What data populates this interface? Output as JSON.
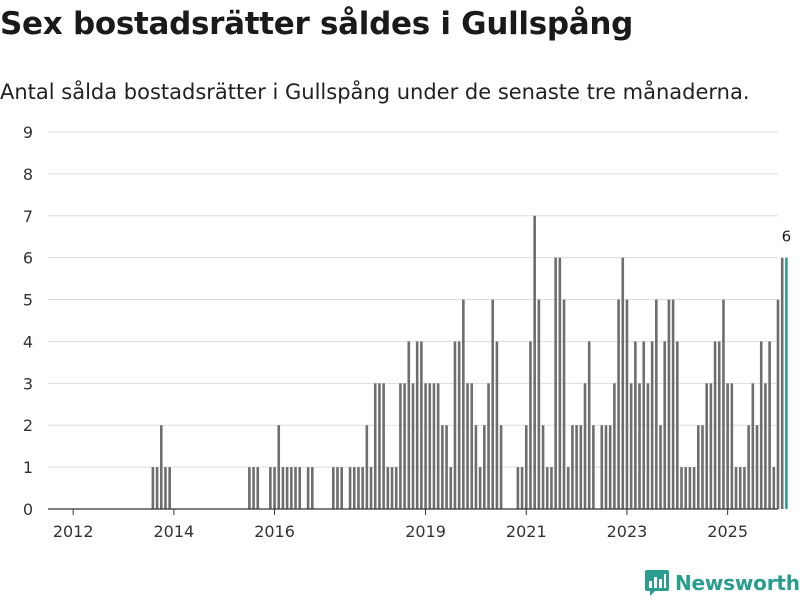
{
  "title": "Sex bostadsrätter såldes i Gullspång",
  "subtitle": "Antal sålda bostadsrätter i Gullspång under de senaste tre månaderna.",
  "brand": {
    "name": "Newsworthy",
    "logo": "newsworthy-chart-logo-icon"
  },
  "colors": {
    "bar": "#6e6e6e",
    "highlight": "#2a9d8f",
    "grid": "#dddddd",
    "axis": "#333333",
    "text": "#333333"
  },
  "chart_data": {
    "type": "bar",
    "title": "Sex bostadsrätter såldes i Gullspång",
    "xlabel": "",
    "ylabel": "",
    "ylim": [
      0,
      9
    ],
    "yticks": [
      0,
      1,
      2,
      3,
      4,
      5,
      6,
      7,
      8,
      9
    ],
    "xlim": [
      2011.5,
      2026.0
    ],
    "xticks": [
      {
        "label": "2012",
        "x": 2012.0
      },
      {
        "label": "2014",
        "x": 2014.0
      },
      {
        "label": "2016",
        "x": 2016.0
      },
      {
        "label": "2019",
        "x": 2019.0
      },
      {
        "label": "2021",
        "x": 2021.0
      },
      {
        "label": "2023",
        "x": 2023.0
      },
      {
        "label": "2025",
        "x": 2025.0
      }
    ],
    "grid": true,
    "start_month": "2011-07",
    "frequency": "monthly, rolling three-month total",
    "values": [
      0,
      0,
      0,
      0,
      0,
      0,
      0,
      0,
      0,
      0,
      0,
      0,
      0,
      0,
      0,
      0,
      0,
      0,
      0,
      0,
      0,
      0,
      0,
      0,
      0,
      1,
      1,
      2,
      1,
      1,
      0,
      0,
      0,
      0,
      0,
      0,
      0,
      0,
      0,
      0,
      0,
      0,
      0,
      0,
      0,
      0,
      0,
      0,
      1,
      1,
      1,
      0,
      0,
      1,
      1,
      2,
      1,
      1,
      1,
      1,
      1,
      0,
      1,
      1,
      0,
      0,
      0,
      0,
      1,
      1,
      1,
      0,
      1,
      1,
      1,
      1,
      2,
      1,
      3,
      3,
      3,
      1,
      1,
      1,
      3,
      3,
      4,
      3,
      4,
      4,
      3,
      3,
      3,
      3,
      2,
      2,
      1,
      4,
      4,
      5,
      3,
      3,
      2,
      1,
      2,
      3,
      5,
      4,
      2,
      0,
      0,
      0,
      1,
      1,
      2,
      4,
      7,
      5,
      2,
      1,
      1,
      6,
      6,
      5,
      1,
      2,
      2,
      2,
      3,
      4,
      2,
      0,
      2,
      2,
      2,
      3,
      5,
      6,
      5,
      3,
      4,
      3,
      4,
      3,
      4,
      5,
      2,
      4,
      5,
      5,
      4,
      1,
      1,
      1,
      1,
      2,
      2,
      3,
      3,
      4,
      4,
      5,
      3,
      3,
      1,
      1,
      1,
      2,
      3,
      2,
      4,
      3,
      4,
      1,
      5,
      6,
      6
    ],
    "highlight_last": true,
    "annotation": {
      "label": "6",
      "target": "last"
    }
  }
}
